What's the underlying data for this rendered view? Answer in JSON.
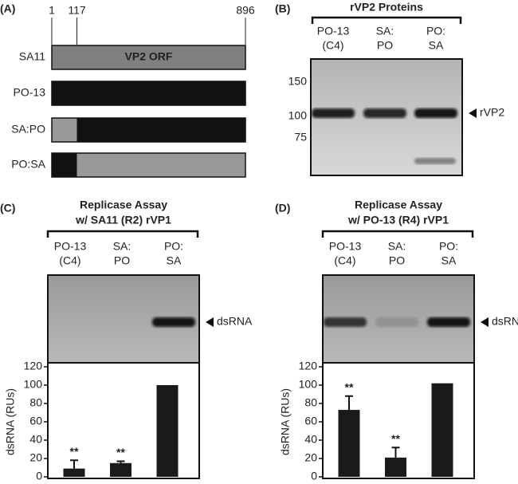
{
  "panel_a": {
    "label": "(A)",
    "scale": [
      1,
      117,
      896
    ],
    "orf_label": "VP2 ORF",
    "rows": [
      "SA11",
      "PO-13",
      "SA:PO",
      "PO:SA"
    ]
  },
  "panel_b": {
    "label": "(B)",
    "title": "rVP2 Proteins",
    "lanes": [
      [
        "PO-13",
        "(C4)"
      ],
      [
        "SA:",
        "PO"
      ],
      [
        "PO:",
        "SA"
      ]
    ],
    "mw_markers": [
      "150",
      "100",
      "75"
    ],
    "band_label": "rVP2"
  },
  "chart_data": [
    {
      "type": "bar",
      "panel_label": "(C)",
      "title": [
        "Replicase Assay",
        "w/ SA11 (R2) rVP1"
      ],
      "categories": [
        [
          "PO-13",
          "(C4)"
        ],
        [
          "SA:",
          "PO"
        ],
        [
          "PO:",
          "SA"
        ]
      ],
      "band_label": "dsRNA",
      "ylabel": "dsRNA (RUs)",
      "ylim": [
        0,
        120
      ],
      "yticks": [
        0,
        20,
        40,
        60,
        80,
        100,
        120
      ],
      "values": [
        9,
        15,
        100
      ],
      "errors": [
        9,
        2,
        null
      ],
      "significance": [
        "**",
        "**",
        null
      ],
      "color": "#1a1a1a"
    },
    {
      "type": "bar",
      "panel_label": "(D)",
      "title": [
        "Replicase Assay",
        "w/ PO-13 (R4) rVP1"
      ],
      "categories": [
        [
          "PO-13",
          "(C4)"
        ],
        [
          "SA:",
          "PO"
        ],
        [
          "PO:",
          "SA"
        ]
      ],
      "band_label": "dsRNA",
      "ylabel": "dsRNA (RUs)",
      "ylim": [
        0,
        120
      ],
      "yticks": [
        0,
        20,
        40,
        60,
        80,
        100,
        120
      ],
      "values": [
        73,
        21,
        102
      ],
      "errors": [
        15,
        11,
        null
      ],
      "significance": [
        "**",
        "**",
        null
      ],
      "color": "#1a1a1a"
    }
  ]
}
